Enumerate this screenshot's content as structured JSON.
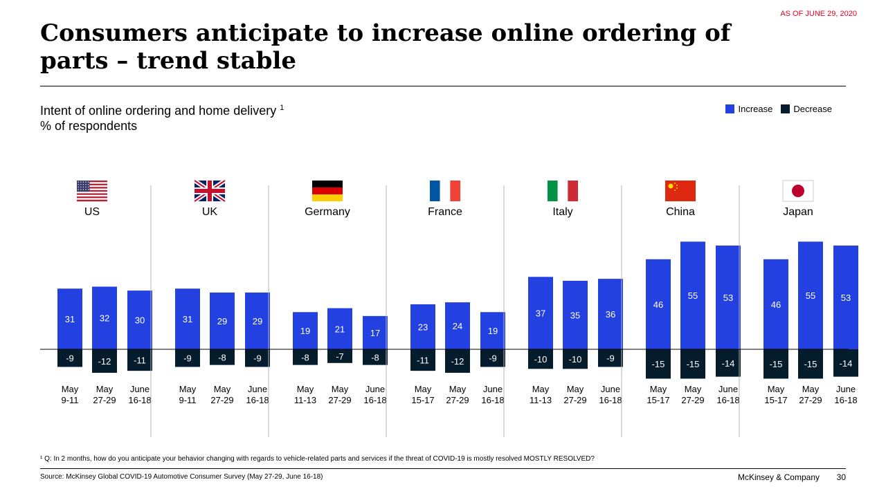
{
  "header": {
    "as_of": "AS OF JUNE 29, 2020",
    "title": "Consumers anticipate to increase online ordering of parts – trend stable",
    "subtitle": "Intent of online ordering and home delivery",
    "subtitle_sup": "1",
    "unit": "% of respondents"
  },
  "legend": {
    "increase": "Increase",
    "decrease": "Decrease"
  },
  "colors": {
    "increase": "#2340e0",
    "decrease": "#051c2c"
  },
  "chart_data": {
    "type": "bar",
    "groups": [
      {
        "country": "US",
        "flag": "us-flag-icon",
        "periods": [
          [
            "May",
            "9-11"
          ],
          [
            "May",
            "27-29"
          ],
          [
            "June",
            "16-18"
          ]
        ],
        "increase": [
          31,
          32,
          30
        ],
        "decrease": [
          -9,
          -12,
          -11
        ]
      },
      {
        "country": "UK",
        "flag": "uk-flag-icon",
        "periods": [
          [
            "May",
            "9-11"
          ],
          [
            "May",
            "27-29"
          ],
          [
            "June",
            "16-18"
          ]
        ],
        "increase": [
          31,
          29,
          29
        ],
        "decrease": [
          -9,
          -8,
          -9
        ]
      },
      {
        "country": "Germany",
        "flag": "germany-flag-icon",
        "periods": [
          [
            "May",
            "11-13"
          ],
          [
            "May",
            "27-29"
          ],
          [
            "June",
            "16-18"
          ]
        ],
        "increase": [
          19,
          21,
          17
        ],
        "decrease": [
          -8,
          -7,
          -8
        ]
      },
      {
        "country": "France",
        "flag": "france-flag-icon",
        "periods": [
          [
            "May",
            "15-17"
          ],
          [
            "May",
            "27-29"
          ],
          [
            "June",
            "16-18"
          ]
        ],
        "increase": [
          23,
          24,
          19
        ],
        "decrease": [
          -11,
          -12,
          -9
        ]
      },
      {
        "country": "Italy",
        "flag": "italy-flag-icon",
        "periods": [
          [
            "May",
            "11-13"
          ],
          [
            "May",
            "27-29"
          ],
          [
            "June",
            "16-18"
          ]
        ],
        "increase": [
          37,
          35,
          36
        ],
        "decrease": [
          -10,
          -10,
          -9
        ]
      },
      {
        "country": "China",
        "flag": "china-flag-icon",
        "periods": [
          [
            "May",
            "15-17"
          ],
          [
            "May",
            "27-29"
          ],
          [
            "June",
            "16-18"
          ]
        ],
        "increase": [
          46,
          55,
          53
        ],
        "decrease": [
          -15,
          -15,
          -14
        ]
      },
      {
        "country": "Japan",
        "flag": "japan-flag-icon",
        "periods": [
          [
            "May",
            "15-17"
          ],
          [
            "May",
            "27-29"
          ],
          [
            "June",
            "16-18"
          ]
        ],
        "increase": [
          46,
          55,
          53
        ],
        "decrease": [
          -15,
          -15,
          -14
        ]
      }
    ]
  },
  "footer": {
    "footnote": "¹ Q: In 2 months, how do you anticipate your behavior changing with regards to vehicle-related parts and services if the threat of COVID-19 is mostly resolved MOSTLY RESOLVED?",
    "source": "Source: McKinsey Global COVID-19 Automotive Consumer Survey (May 27-29, June 16-18)",
    "brand": "McKinsey & Company",
    "page": "30"
  }
}
